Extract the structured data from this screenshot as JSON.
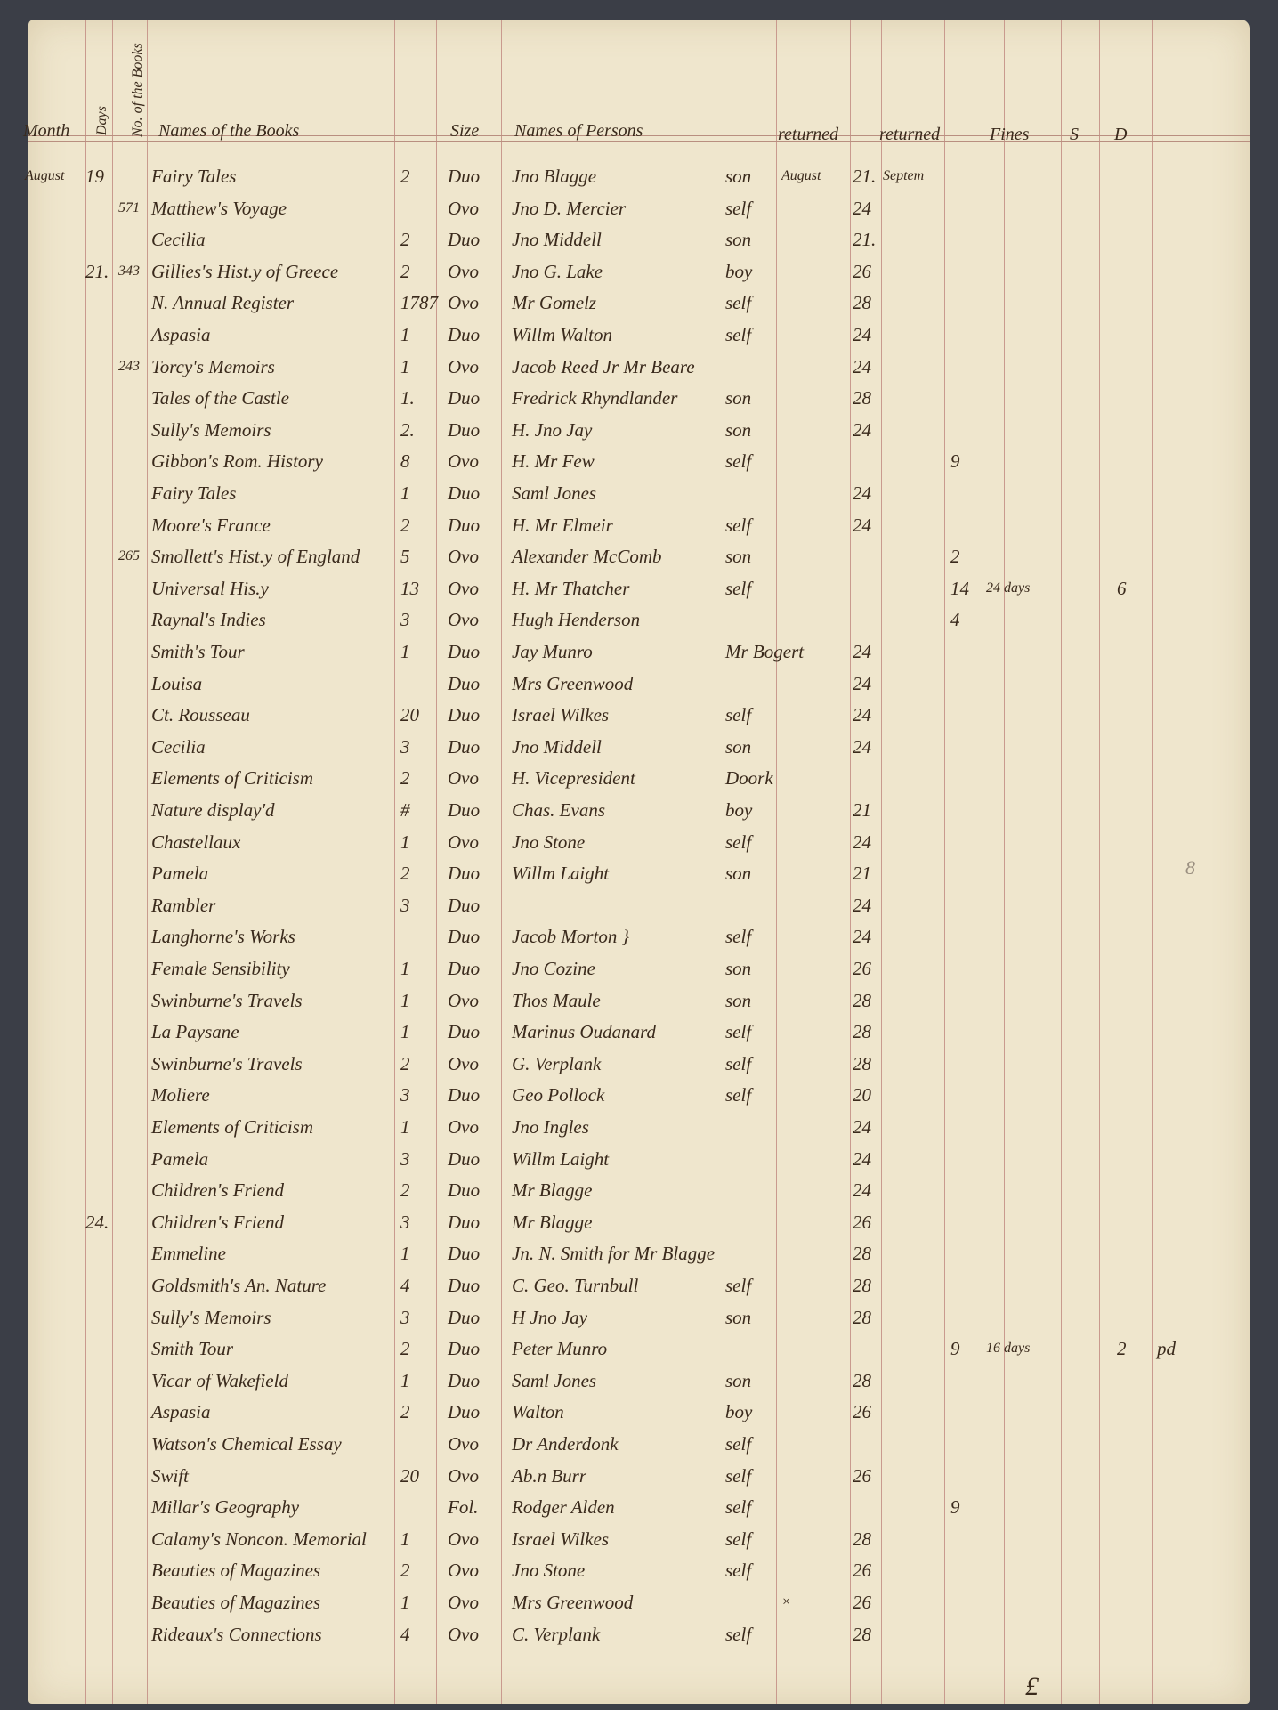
{
  "header": {
    "month": "Month",
    "days": "Days",
    "book_no": "No. of the Books",
    "book_names": "Names of the Books",
    "size": "Size",
    "person_names": "Names of Persons",
    "returned_1": "returned",
    "returned_2": "returned",
    "fines": "Fines",
    "shillings": "S",
    "pence": "D"
  },
  "rows": [
    {
      "month": "August",
      "day": "19",
      "no": "",
      "title": "Fairy Tales",
      "vols": "2",
      "size": "Duo",
      "person": "Jno Blagge",
      "by": "son",
      "ret_month": "August",
      "ret_day": "21.",
      "ret2": "Septem"
    },
    {
      "no": "571",
      "title": "Matthew's Voyage",
      "vols": "",
      "size": "Ovo",
      "person": "Jno D. Mercier",
      "by": "self",
      "ret_day": "24"
    },
    {
      "title": "Cecilia",
      "vols": "2",
      "size": "Duo",
      "person": "Jno Middell",
      "by": "son",
      "ret_day": "21."
    },
    {
      "day": "21.",
      "no": "343",
      "title": "Gillies's Hist.y of Greece",
      "vols": "2",
      "size": "Ovo",
      "person": "Jno G. Lake",
      "by": "boy",
      "ret_day": "26"
    },
    {
      "title": "N. Annual Register",
      "vols": "1787",
      "size": "Ovo",
      "person": "Mr Gomelz",
      "by": "self",
      "ret_day": "28"
    },
    {
      "title": "Aspasia",
      "vols": "1",
      "size": "Duo",
      "person": "Willm Walton",
      "by": "self",
      "ret_day": "24"
    },
    {
      "no": "243",
      "title": "Torcy's Memoirs",
      "vols": "1",
      "size": "Ovo",
      "person": "Jacob Reed Jr Mr Beare",
      "by": "",
      "ret_day": "24"
    },
    {
      "title": "Tales of the Castle",
      "vols": "1.",
      "size": "Duo",
      "person": "Fredrick Rhyndlander",
      "by": "son",
      "ret_day": "28"
    },
    {
      "title": "Sully's Memoirs",
      "vols": "2.",
      "size": "Duo",
      "person": "H. Jno Jay",
      "by": "son",
      "ret_day": "24"
    },
    {
      "title": "Gibbon's Rom. History",
      "vols": "8",
      "size": "Ovo",
      "person": "H. Mr Few",
      "by": "self",
      "fines": "9"
    },
    {
      "title": "Fairy Tales",
      "vols": "1",
      "size": "Duo",
      "person": "Saml Jones",
      "by": "",
      "ret_day": "24"
    },
    {
      "title": "Moore's France",
      "vols": "2",
      "size": "Duo",
      "person": "H. Mr Elmeir",
      "by": "self",
      "ret_day": "24"
    },
    {
      "no": "265",
      "title": "Smollett's Hist.y of England",
      "vols": "5",
      "size": "Ovo",
      "person": "Alexander McComb",
      "by": "son",
      "fines": "2"
    },
    {
      "title": "Universal His.y",
      "vols": "13",
      "size": "Ovo",
      "person": "H. Mr Thatcher",
      "by": "self",
      "fines": "14",
      "fines_days": "24 days",
      "d": "6"
    },
    {
      "title": "Raynal's Indies",
      "vols": "3",
      "size": "Ovo",
      "person": "Hugh Henderson",
      "by": "",
      "fines": "4"
    },
    {
      "title": "Smith's Tour",
      "vols": "1",
      "size": "Duo",
      "person": "Jay Munro",
      "by": "Mr Bogert",
      "ret_day": "24"
    },
    {
      "title": "Louisa",
      "vols": "",
      "size": "Duo",
      "person": "Mrs Greenwood",
      "by": "",
      "ret_day": "24"
    },
    {
      "title": "Ct. Rousseau",
      "vols": "20",
      "size": "Duo",
      "person": "Israel Wilkes",
      "by": "self",
      "ret_day": "24"
    },
    {
      "title": "Cecilia",
      "vols": "3",
      "size": "Duo",
      "person": "Jno Middell",
      "by": "son",
      "ret_day": "24"
    },
    {
      "title": "Elements of Criticism",
      "vols": "2",
      "size": "Ovo",
      "person": "H. Vicepresident",
      "by": "Doork"
    },
    {
      "title": "Nature display'd",
      "vols": "#",
      "size": "Duo",
      "person": "Chas. Evans",
      "by": "boy",
      "ret_day": "21"
    },
    {
      "title": "Chastellaux",
      "vols": "1",
      "size": "Ovo",
      "person": "Jno Stone",
      "by": "self",
      "ret_day": "24"
    },
    {
      "title": "Pamela",
      "vols": "2",
      "size": "Duo",
      "person": "Willm Laight",
      "by": "son",
      "ret_day": "21"
    },
    {
      "title": "Rambler",
      "vols": "3",
      "size": "Duo",
      "person": "",
      "by": "",
      "ret_day": "24"
    },
    {
      "title": "Langhorne's Works",
      "vols": "",
      "size": "Duo",
      "person": "Jacob Morton }",
      "by": "self",
      "ret_day": "24"
    },
    {
      "title": "Female Sensibility",
      "vols": "1",
      "size": "Duo",
      "person": "Jno Cozine",
      "by": "son",
      "ret_day": "26"
    },
    {
      "title": "Swinburne's Travels",
      "vols": "1",
      "size": "Ovo",
      "person": "Thos Maule",
      "by": "son",
      "ret_day": "28"
    },
    {
      "title": "La Paysane",
      "vols": "1",
      "size": "Duo",
      "person": "Marinus Oudanard",
      "by": "self",
      "ret_day": "28"
    },
    {
      "title": "Swinburne's Travels",
      "vols": "2",
      "size": "Ovo",
      "person": "G. Verplank",
      "by": "self",
      "ret_day": "28"
    },
    {
      "title": "Moliere",
      "vols": "3",
      "size": "Duo",
      "person": "Geo Pollock",
      "by": "self",
      "ret_day": "20"
    },
    {
      "title": "Elements of Criticism",
      "vols": "1",
      "size": "Ovo",
      "person": "Jno Ingles",
      "by": "",
      "ret_day": "24"
    },
    {
      "title": "Pamela",
      "vols": "3",
      "size": "Duo",
      "person": "Willm Laight",
      "by": "",
      "ret_day": "24"
    },
    {
      "title": "Children's Friend",
      "vols": "2",
      "size": "Duo",
      "person": "Mr Blagge",
      "by": "",
      "ret_day": "24"
    },
    {
      "day": "24.",
      "title": "Children's Friend",
      "vols": "3",
      "size": "Duo",
      "person": "Mr Blagge",
      "by": "",
      "ret_day": "26"
    },
    {
      "title": "Emmeline",
      "vols": "1",
      "size": "Duo",
      "person": "Jn. N. Smith for Mr Blagge",
      "by": "",
      "ret_day": "28"
    },
    {
      "title": "Goldsmith's An. Nature",
      "vols": "4",
      "size": "Duo",
      "person": "C. Geo. Turnbull",
      "by": "self",
      "ret_day": "28"
    },
    {
      "title": "Sully's Memoirs",
      "vols": "3",
      "size": "Duo",
      "person": "H Jno Jay",
      "by": "son",
      "ret_day": "28"
    },
    {
      "title": "Smith Tour",
      "vols": "2",
      "size": "Duo",
      "person": "Peter Munro",
      "by": "",
      "fines": "9",
      "fines_days": "16 days",
      "d": "2",
      "note": "pd"
    },
    {
      "title": "Vicar of Wakefield",
      "vols": "1",
      "size": "Duo",
      "person": "Saml Jones",
      "by": "son",
      "ret_day": "28"
    },
    {
      "title": "Aspasia",
      "vols": "2",
      "size": "Duo",
      "person": "Walton",
      "by": "boy",
      "ret_day": "26"
    },
    {
      "title": "Watson's Chemical Essay",
      "vols": "",
      "size": "Ovo",
      "person": "Dr Anderdonk",
      "by": "self"
    },
    {
      "title": "Swift",
      "vols": "20",
      "size": "Ovo",
      "person": "Ab.n Burr",
      "by": "self",
      "ret_day": "26"
    },
    {
      "title": "Millar's Geography",
      "vols": "",
      "size": "Fol.",
      "person": "Rodger Alden",
      "by": "self",
      "fines": "9"
    },
    {
      "title": "Calamy's Noncon. Memorial",
      "vols": "1",
      "size": "Ovo",
      "person": "Israel Wilkes",
      "by": "self",
      "ret_day": "28"
    },
    {
      "title": "Beauties of Magazines",
      "vols": "2",
      "size": "Ovo",
      "person": "Jno Stone",
      "by": "self",
      "ret_day": "26"
    },
    {
      "title": "Beauties of Magazines",
      "vols": "1",
      "size": "Ovo",
      "person": "Mrs Greenwood",
      "by": "",
      "ret_month": "×",
      "ret_day": "26"
    },
    {
      "title": "Rideaux's Connections",
      "vols": "4",
      "size": "Ovo",
      "person": "C. Verplank",
      "by": "self",
      "ret_day": "28"
    }
  ],
  "footer": {
    "pound_sign": "£"
  },
  "margin_note": "8",
  "colors": {
    "paper": "#efe6cd",
    "ink": "#3a2a1c",
    "rule": "#c99a8e",
    "background": "#3b3e47"
  }
}
